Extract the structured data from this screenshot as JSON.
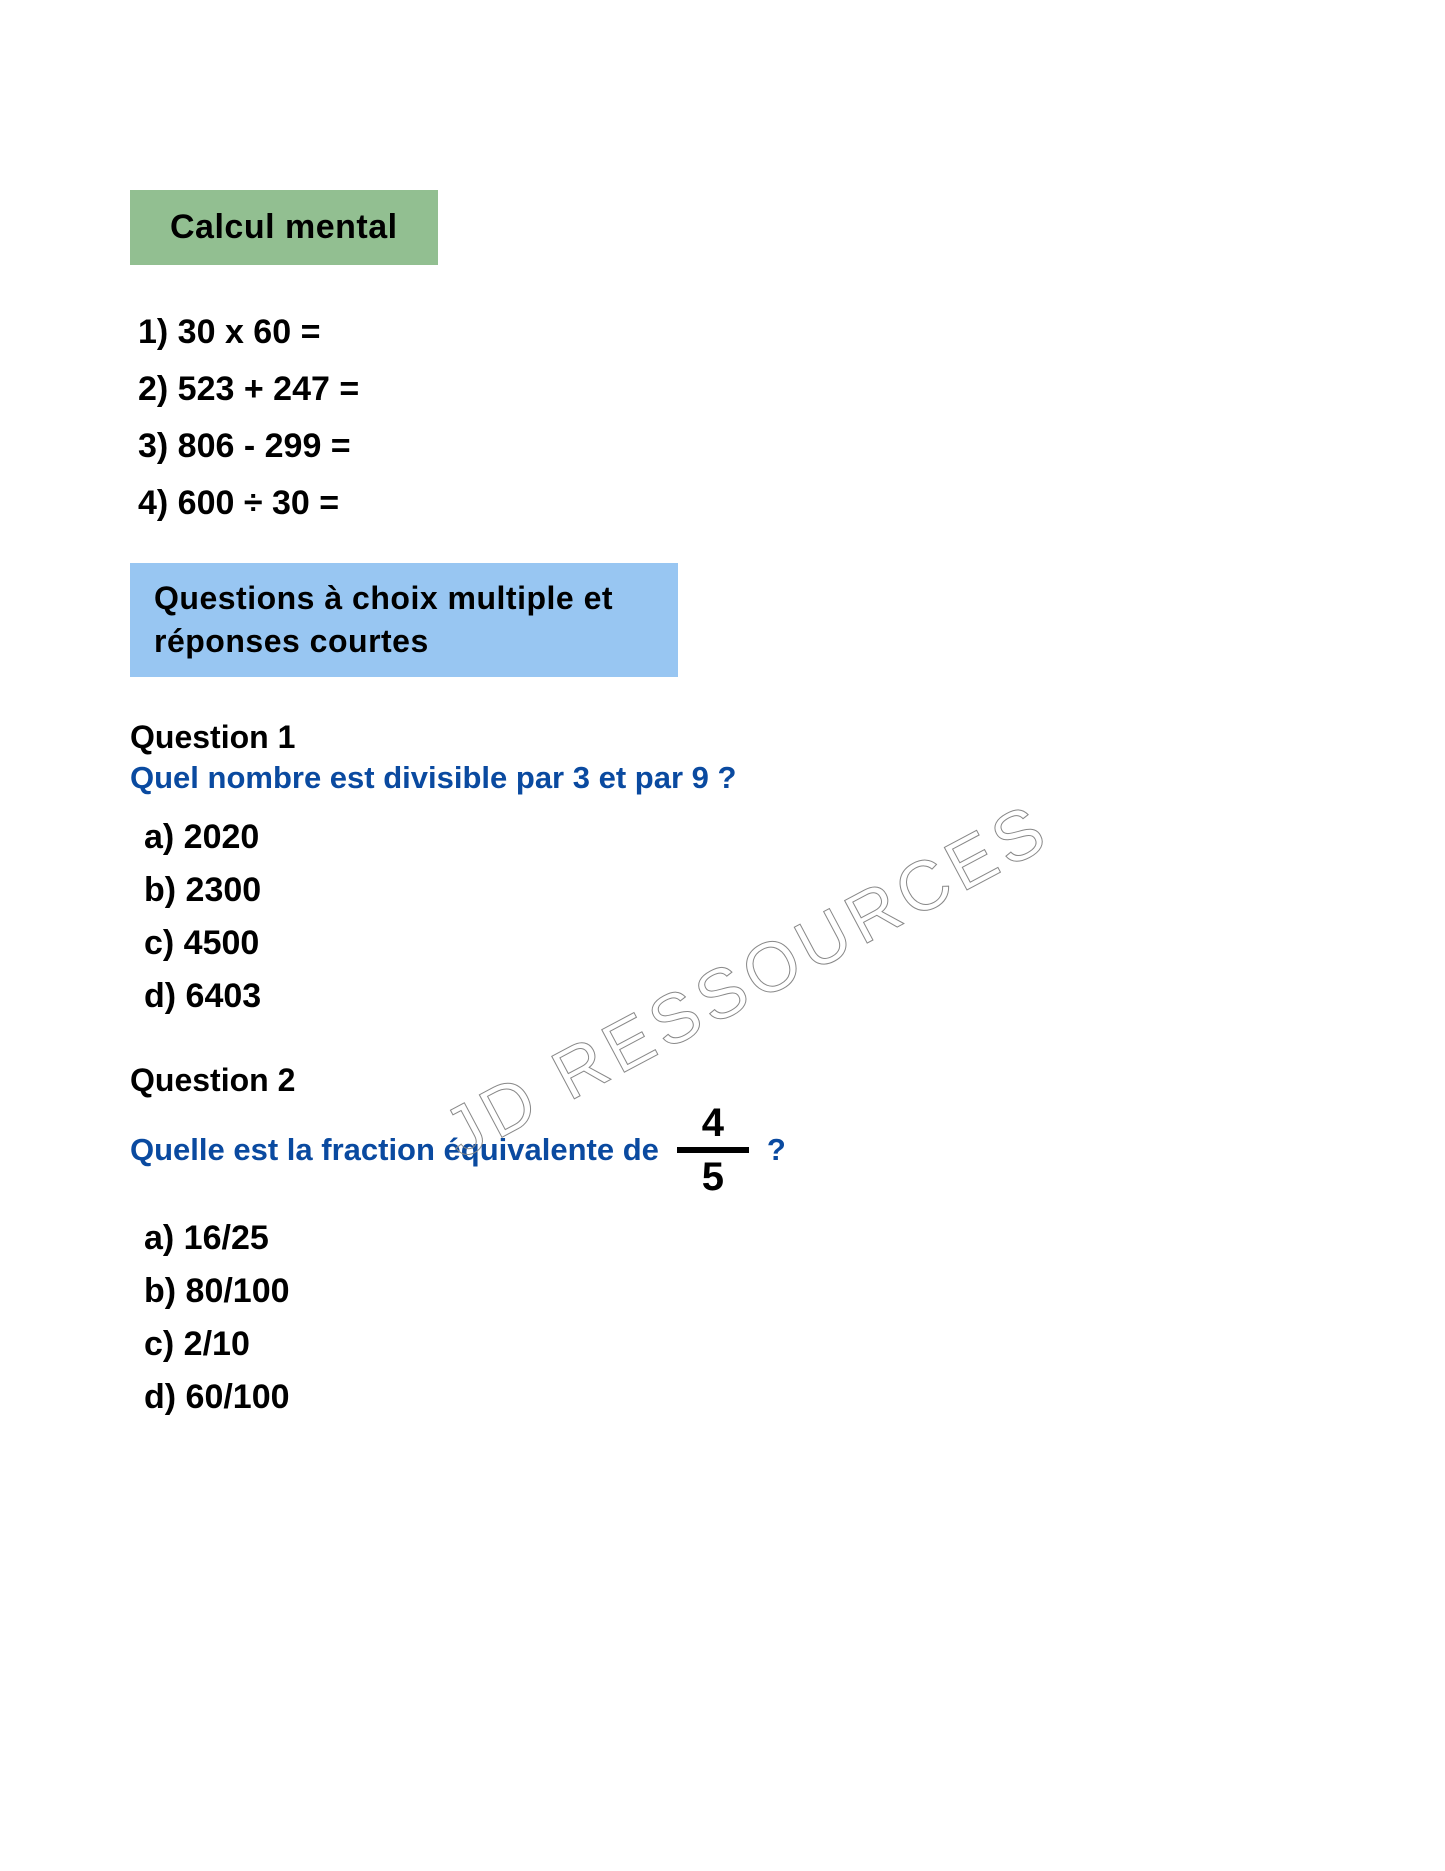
{
  "colors": {
    "header_green_bg": "#92bf91",
    "header_blue_bg": "#98c6f2",
    "question_blue": "#0a4aa0",
    "text_black": "#000000",
    "page_bg": "#ffffff",
    "watermark_stroke": "#888888"
  },
  "typography": {
    "heading_font": "Trebuchet MS",
    "body_font": "Arial",
    "heading_size_pt": 26,
    "item_size_pt": 26,
    "question_label_size_pt": 24,
    "question_text_size_pt": 23,
    "fraction_size_pt": 30,
    "watermark_size_pt": 52
  },
  "watermark": {
    "text": "JD RESSOURCES",
    "rotation_deg": -28
  },
  "section_calcul": {
    "title": "Calcul mental",
    "items": [
      "1) 30 x 60 =",
      "2) 523 + 247 =",
      "3) 806 - 299 =",
      "4) 600  ÷  30 ="
    ]
  },
  "section_mcq": {
    "title": "Questions à choix multiple et réponses courtes",
    "q1": {
      "label": "Question 1",
      "text": "Quel nombre est divisible par 3 et par 9 ?",
      "options": [
        "a) 2020",
        "b) 2300",
        "c) 4500",
        "d) 6403"
      ]
    },
    "q2": {
      "label": "Question 2",
      "text_before": "Quelle est la fraction équivalente de",
      "fraction_num": "4",
      "fraction_den": "5",
      "text_after": "?",
      "options": [
        "a) 16/25",
        "b) 80/100",
        "c) 2/10",
        "d) 60/100"
      ]
    }
  }
}
